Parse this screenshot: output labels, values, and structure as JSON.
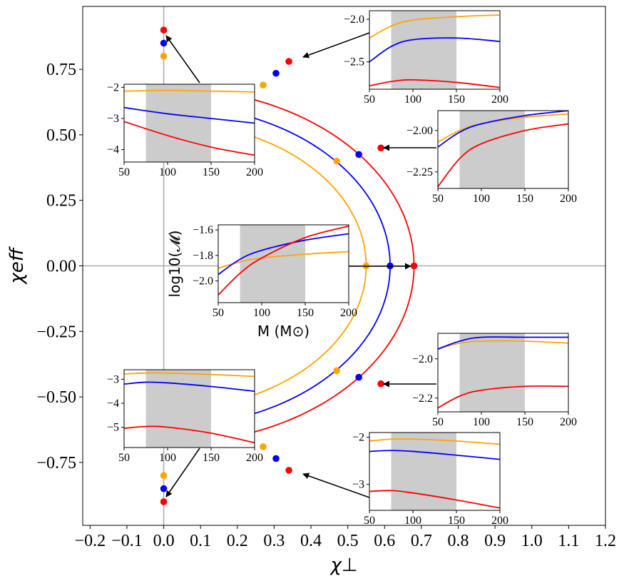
{
  "chart_data": {
    "type": "line",
    "main": {
      "xlabel": "χ⊥",
      "ylabel": "χeff",
      "xlim": [
        -0.22,
        1.2
      ],
      "ylim": [
        -0.99,
        0.99
      ],
      "xticks": [
        -0.2,
        -0.1,
        0.0,
        0.1,
        0.2,
        0.3,
        0.4,
        0.5,
        0.6,
        0.7,
        0.8,
        0.9,
        1.0,
        1.1,
        1.2
      ],
      "xtick_labels": [
        "−0.2",
        "−0.1",
        "0.0",
        "0.1",
        "0.2",
        "0.3",
        "0.4",
        "0.5",
        "0.6",
        "0.7",
        "0.8",
        "0.9",
        "1.0",
        "1.1",
        "1.2"
      ],
      "yticks": [
        0.75,
        0.5,
        0.25,
        0.0,
        -0.25,
        -0.5,
        -0.75
      ],
      "ytick_labels": [
        "0.75",
        "0.50",
        "0.25",
        "0.00",
        "−0.25",
        "−0.50",
        "−0.75"
      ],
      "reference_lines": {
        "x": 0.0,
        "y": 0.0,
        "color": "#aaaaaa"
      },
      "arcs": [
        {
          "color": "#ff0000",
          "radius": 0.68
        },
        {
          "color": "#0000ff",
          "radius": 0.615
        },
        {
          "color": "#ffa500",
          "radius": 0.55
        }
      ],
      "markers": [
        {
          "color": "#ff0000",
          "points": [
            [
              0.0,
              0.9
            ],
            [
              0.34,
              0.78
            ],
            [
              0.59,
              0.45
            ],
            [
              0.68,
              0.0
            ],
            [
              0.59,
              -0.45
            ],
            [
              0.34,
              -0.78
            ],
            [
              0.0,
              -0.9
            ]
          ]
        },
        {
          "color": "#0000ff",
          "points": [
            [
              0.0,
              0.85
            ],
            [
              0.305,
              0.735
            ],
            [
              0.53,
              0.425
            ],
            [
              0.615,
              0.0
            ],
            [
              0.53,
              -0.425
            ],
            [
              0.305,
              -0.735
            ],
            [
              0.0,
              -0.85
            ]
          ]
        },
        {
          "color": "#ffa500",
          "points": [
            [
              0.0,
              0.8
            ],
            [
              0.27,
              0.69
            ],
            [
              0.47,
              0.4
            ],
            [
              0.55,
              0.0
            ],
            [
              0.47,
              -0.4
            ],
            [
              0.27,
              -0.69
            ],
            [
              0.0,
              -0.8
            ]
          ]
        }
      ]
    },
    "insets": [
      {
        "id": "top-left",
        "ylim": [
          -4.4,
          -1.9
        ],
        "yticks": [
          -2,
          -3,
          -4
        ],
        "ytick_labels": [
          "−2",
          "−3",
          "−4"
        ],
        "xticks": [
          50,
          100,
          150,
          200
        ],
        "xtick_labels": [
          "50",
          "100",
          "150",
          "200"
        ],
        "shade": [
          75,
          150
        ],
        "xlabel": "",
        "ylabel": "",
        "series": [
          {
            "color": "#ffa500",
            "x": [
              50,
              100,
              150,
              200
            ],
            "y": [
              -2.12,
              -2.1,
              -2.12,
              -2.15
            ]
          },
          {
            "color": "#0000ff",
            "x": [
              50,
              100,
              150,
              200
            ],
            "y": [
              -2.65,
              -2.85,
              -3.0,
              -3.15
            ]
          },
          {
            "color": "#ff0000",
            "x": [
              50,
              100,
              150,
              200
            ],
            "y": [
              -3.1,
              -3.55,
              -3.92,
              -4.18
            ]
          }
        ]
      },
      {
        "id": "top-right",
        "ylim": [
          -2.82,
          -1.9
        ],
        "yticks": [
          -2.0,
          -2.5
        ],
        "ytick_labels": [
          "−2.0",
          "−2.5"
        ],
        "xticks": [
          50,
          100,
          150,
          200
        ],
        "xtick_labels": [
          "50",
          "100",
          "150",
          "200"
        ],
        "shade": [
          75,
          150
        ],
        "xlabel": "",
        "ylabel": "",
        "series": [
          {
            "color": "#ffa500",
            "x": [
              50,
              75,
              100,
              150,
              200
            ],
            "y": [
              -2.22,
              -2.08,
              -2.01,
              -1.97,
              -1.95
            ]
          },
          {
            "color": "#0000ff",
            "x": [
              50,
              75,
              100,
              150,
              200
            ],
            "y": [
              -2.5,
              -2.32,
              -2.24,
              -2.22,
              -2.26
            ]
          },
          {
            "color": "#ff0000",
            "x": [
              50,
              75,
              100,
              150,
              200
            ],
            "y": [
              -2.78,
              -2.73,
              -2.71,
              -2.74,
              -2.8
            ]
          }
        ]
      },
      {
        "id": "right-upper",
        "ylim": [
          -2.35,
          -1.88
        ],
        "yticks": [
          -2.0,
          -2.25
        ],
        "ytick_labels": [
          "−2.00",
          "−2.25"
        ],
        "xticks": [
          50,
          100,
          150,
          200
        ],
        "xtick_labels": [
          "50",
          "100",
          "150",
          "200"
        ],
        "shade": [
          75,
          150
        ],
        "xlabel": "",
        "ylabel": "",
        "series": [
          {
            "color": "#ffa500",
            "x": [
              50,
              75,
              100,
              150,
              200
            ],
            "y": [
              -2.07,
              -2.0,
              -1.96,
              -1.92,
              -1.9
            ]
          },
          {
            "color": "#0000ff",
            "x": [
              50,
              75,
              100,
              150,
              200
            ],
            "y": [
              -2.1,
              -2.01,
              -1.96,
              -1.91,
              -1.88
            ]
          },
          {
            "color": "#ff0000",
            "x": [
              50,
              75,
              100,
              150,
              200
            ],
            "y": [
              -2.34,
              -2.17,
              -2.08,
              -2.0,
              -1.96
            ]
          }
        ]
      },
      {
        "id": "center",
        "ylim": [
          -2.17,
          -1.56
        ],
        "yticks": [
          -1.6,
          -1.8,
          -2.0
        ],
        "ytick_labels": [
          "−1.6",
          "−1.8",
          "−2.0"
        ],
        "xticks": [
          50,
          100,
          150,
          200
        ],
        "xtick_labels": [
          "50",
          "100",
          "150",
          "200"
        ],
        "shade": [
          75,
          150
        ],
        "xlabel": "M (M⊙)",
        "ylabel": "log10(𝓜)",
        "series": [
          {
            "color": "#ffa500",
            "x": [
              50,
              75,
              100,
              150,
              200
            ],
            "y": [
              -1.9,
              -1.85,
              -1.82,
              -1.79,
              -1.77
            ]
          },
          {
            "color": "#0000ff",
            "x": [
              50,
              75,
              100,
              150,
              200
            ],
            "y": [
              -1.95,
              -1.83,
              -1.76,
              -1.68,
              -1.63
            ]
          },
          {
            "color": "#ff0000",
            "x": [
              50,
              75,
              100,
              150,
              200
            ],
            "y": [
              -2.11,
              -1.94,
              -1.82,
              -1.66,
              -1.57
            ]
          }
        ]
      },
      {
        "id": "right-lower",
        "ylim": [
          -2.27,
          -1.87
        ],
        "yticks": [
          -2.0,
          -2.2
        ],
        "ytick_labels": [
          "−2.0",
          "−2.2"
        ],
        "xticks": [
          50,
          100,
          150,
          200
        ],
        "xtick_labels": [
          "50",
          "100",
          "150",
          "200"
        ],
        "shade": [
          75,
          150
        ],
        "xlabel": "",
        "ylabel": "",
        "series": [
          {
            "color": "#ffa500",
            "x": [
              50,
              75,
              100,
              150,
              200
            ],
            "y": [
              -1.95,
              -1.92,
              -1.91,
              -1.91,
              -1.92
            ]
          },
          {
            "color": "#0000ff",
            "x": [
              50,
              75,
              100,
              150,
              200
            ],
            "y": [
              -1.95,
              -1.91,
              -1.89,
              -1.89,
              -1.89
            ]
          },
          {
            "color": "#ff0000",
            "x": [
              50,
              75,
              100,
              150,
              200
            ],
            "y": [
              -2.25,
              -2.19,
              -2.16,
              -2.14,
              -2.14
            ]
          }
        ]
      },
      {
        "id": "bottom-left",
        "ylim": [
          -5.85,
          -2.6
        ],
        "yticks": [
          -3,
          -4,
          -5
        ],
        "ytick_labels": [
          "−3",
          "−4",
          "−5"
        ],
        "xticks": [
          50,
          100,
          150,
          200
        ],
        "xtick_labels": [
          "50",
          "100",
          "150",
          "200"
        ],
        "shade": [
          75,
          150
        ],
        "xlabel": "",
        "ylabel": "",
        "series": [
          {
            "color": "#ffa500",
            "x": [
              50,
              75,
              100,
              150,
              200
            ],
            "y": [
              -2.78,
              -2.74,
              -2.74,
              -2.8,
              -2.88
            ]
          },
          {
            "color": "#0000ff",
            "x": [
              50,
              75,
              100,
              150,
              200
            ],
            "y": [
              -3.2,
              -3.12,
              -3.15,
              -3.3,
              -3.5
            ]
          },
          {
            "color": "#ff0000",
            "x": [
              50,
              75,
              100,
              150,
              200
            ],
            "y": [
              -5.05,
              -4.97,
              -5.0,
              -5.25,
              -5.65
            ]
          }
        ]
      },
      {
        "id": "bottom-right",
        "ylim": [
          -3.55,
          -1.9
        ],
        "yticks": [
          -2,
          -3
        ],
        "ytick_labels": [
          "−2",
          "−3"
        ],
        "xticks": [
          50,
          100,
          150,
          200
        ],
        "xtick_labels": [
          "50",
          "100",
          "150",
          "200"
        ],
        "shade": [
          75,
          150
        ],
        "xlabel": "",
        "ylabel": "",
        "series": [
          {
            "color": "#ffa500",
            "x": [
              50,
              75,
              100,
              150,
              200
            ],
            "y": [
              -2.08,
              -2.04,
              -2.04,
              -2.08,
              -2.15
            ]
          },
          {
            "color": "#0000ff",
            "x": [
              50,
              75,
              100,
              150,
              200
            ],
            "y": [
              -2.3,
              -2.28,
              -2.3,
              -2.38,
              -2.47
            ]
          },
          {
            "color": "#ff0000",
            "x": [
              50,
              75,
              100,
              150,
              200
            ],
            "y": [
              -3.15,
              -3.13,
              -3.18,
              -3.33,
              -3.5
            ]
          }
        ]
      }
    ]
  }
}
